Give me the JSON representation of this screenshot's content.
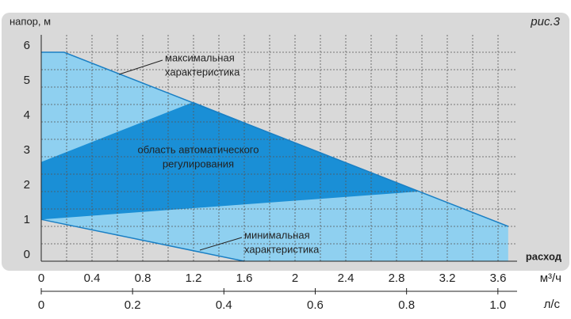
{
  "chart_data": {
    "type": "area",
    "figure_label": "рис.3",
    "y_label": "напор, м",
    "x_label": "расход",
    "x_unit": "м³/ч",
    "x2_unit": "л/с",
    "xlim": [
      0,
      3.75
    ],
    "xticks": [
      0,
      0.4,
      0.8,
      1.2,
      1.6,
      2.0,
      2.4,
      2.8,
      3.2,
      3.6
    ],
    "x2lim": [
      0,
      1.042
    ],
    "x2ticks": [
      0,
      0.2,
      0.4,
      0.6,
      0.8,
      {
        "value": 1,
        "label": "1.0"
      }
    ],
    "ylim": [
      0,
      6.5
    ],
    "yticks": [
      0,
      1,
      2,
      3,
      4,
      5,
      6
    ],
    "grid": true,
    "series": [
      {
        "color": "#8fd0f0",
        "x": [
          0,
          0.18,
          3.68,
          3.68,
          1.6,
          0
        ],
        "values": [
          6,
          6,
          1.0,
          0,
          0,
          1.2
        ]
      },
      {
        "color": "#1a8fd6",
        "x": [
          0,
          1.2,
          2.97,
          0
        ],
        "values": [
          2.85,
          4.57,
          2.0,
          1.2
        ]
      }
    ],
    "annotations": [
      {
        "text": "максимальная характеристика",
        "lines": [
          "максимальная",
          "характеристика"
        ]
      },
      {
        "text": "область автоматического регулирования",
        "lines": [
          "область автоматического",
          "регулирования"
        ]
      },
      {
        "text": "минимальная характеристика",
        "lines": [
          "минимальная",
          "характеристика"
        ]
      }
    ]
  }
}
